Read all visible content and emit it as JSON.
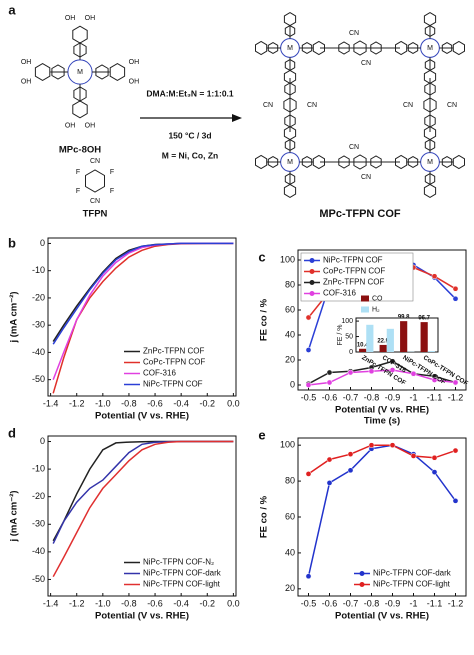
{
  "scheme": {
    "panel": "a",
    "reactant1": "MPc-8OH",
    "reactant2": "TFPN",
    "conditions": [
      "DMA:M:Et₃N = 1:1:0.1",
      "150 °C / 3d",
      "M = Ni, Co, Zn"
    ],
    "product": "MPc-TFPN COF",
    "atoms": {
      "hydroxyl": "OH",
      "nitrile": "CN",
      "fluorine": "F",
      "metal": "M"
    }
  },
  "chart_data": [
    {
      "panel": "b",
      "type": "line",
      "xlabel": "Potential (V vs. RHE)",
      "ylabel": "j (mA cm⁻²)",
      "x": [
        -1.38,
        -1.3,
        -1.2,
        -1.1,
        -1,
        -0.9,
        -0.8,
        -0.7,
        -0.6,
        -0.5,
        -0.4,
        -0.2,
        0
      ],
      "series": [
        {
          "name": "ZnPc-TFPN COF",
          "color": "#222222",
          "values": [
            -36,
            -30,
            -23,
            -16.5,
            -10.5,
            -5.5,
            -2.5,
            -1,
            -0.4,
            -0.2,
            0,
            0,
            0
          ]
        },
        {
          "name": "CoPc-TFPN COF",
          "color": "#e0302a",
          "values": [
            -55,
            -42,
            -28,
            -20,
            -14,
            -9,
            -5,
            -2.5,
            -1,
            -0.4,
            -0.1,
            0,
            0
          ]
        },
        {
          "name": "COF-316",
          "color": "#e040e0",
          "values": [
            -50,
            -40,
            -28,
            -19,
            -12,
            -7,
            -3.5,
            -1.5,
            -0.6,
            -0.2,
            0,
            0,
            0
          ]
        },
        {
          "name": "NiPc-TFPN COF",
          "color": "#2b3fd6",
          "values": [
            -37,
            -31,
            -24,
            -17,
            -11,
            -6,
            -3,
            -1,
            -0.5,
            -0.2,
            0,
            0,
            0
          ]
        }
      ],
      "xlim": [
        -1.42,
        0.02
      ],
      "ylim": [
        -56,
        2
      ],
      "xticks": [
        -1.4,
        -1.2,
        {
          "value": -1,
          "label": "-1.0"
        },
        -0.8,
        -0.6,
        -0.4,
        -0.2,
        {
          "value": 0,
          "label": "0.0"
        }
      ],
      "yticks": [
        0,
        -10,
        -20,
        -30,
        -40,
        -50
      ],
      "legend": "lower right"
    },
    {
      "panel": "c",
      "type": "line",
      "markers": true,
      "xlabel": "Potential (V vs. RHE)",
      "ylabel": "FE co / %",
      "annotation": "Time (s)",
      "x": [
        -0.5,
        -0.6,
        -0.7,
        -0.8,
        -0.9,
        -1,
        -1.1,
        -1.2
      ],
      "series": [
        {
          "name": "NiPc-TFPN COF",
          "color": "#2b3fd6",
          "values": [
            28,
            80,
            88,
            98,
            99,
            96,
            86,
            69
          ]
        },
        {
          "name": "CoPc-TFPN COF",
          "color": "#e0302a",
          "values": [
            54,
            75,
            80,
            89,
            97,
            94,
            87,
            77
          ]
        },
        {
          "name": "ZnPc-TFPN COF",
          "color": "#222222",
          "values": [
            1,
            10,
            11,
            14,
            19,
            9,
            7,
            2
          ]
        },
        {
          "name": "COF-316",
          "color": "#e040e0",
          "values": [
            0,
            2,
            10,
            11,
            12,
            9,
            4,
            2
          ]
        }
      ],
      "xlim": [
        -0.45,
        -1.25
      ],
      "ylim": [
        -4,
        108
      ],
      "xticks": [
        -0.5,
        -0.6,
        -0.7,
        -0.8,
        -0.9,
        -1,
        -1.1,
        -1.2
      ],
      "yticks": [
        0,
        20,
        40,
        60,
        80,
        100
      ],
      "legend": "upper left"
    },
    {
      "type": "bar",
      "ylabel": "FE / %",
      "categories": [
        "ZnPc-TFPN COF",
        "COF-316",
        "NiPc-TFPN COF",
        "CoPc-TFPN COF"
      ],
      "series": [
        {
          "name": "CO",
          "color": "#8b1010",
          "values": [
            10.4,
            22.9,
            99.8,
            96.7
          ],
          "show_values": true
        },
        {
          "name": "H₂",
          "color": "#aee0f5",
          "values": [
            88,
            75,
            1,
            3
          ]
        }
      ],
      "ylim": [
        0,
        110
      ],
      "yticks": [
        0,
        50,
        100
      ],
      "legend": "upper left"
    },
    {
      "panel": "d",
      "type": "line",
      "xlabel": "Potential (V vs. RHE)",
      "ylabel": "j (mA cm⁻²)",
      "x": [
        -1.38,
        -1.3,
        -1.2,
        -1.1,
        -1,
        -0.9,
        -0.8,
        -0.7,
        -0.6,
        -0.5,
        -0.4,
        -0.2,
        0
      ],
      "series": [
        {
          "name": "NiPc-TFPN COF-N₂",
          "color": "#222222",
          "values": [
            -36,
            -29,
            -19,
            -10,
            -3,
            -0.5,
            -0.2,
            -0.1,
            0,
            0,
            0,
            0,
            0
          ]
        },
        {
          "name": "NiPc-TFPN COF-dark",
          "color": "#3333aa",
          "values": [
            -37,
            -29,
            -22,
            -17,
            -14,
            -9,
            -4,
            -1,
            -0.3,
            -0.1,
            0,
            0,
            0
          ]
        },
        {
          "name": "NiPc-TFPN COF-light",
          "color": "#e03030",
          "values": [
            -49,
            -42,
            -33,
            -24,
            -17,
            -12,
            -7,
            -3,
            -1,
            -0.3,
            0,
            0,
            0
          ]
        }
      ],
      "xlim": [
        -1.42,
        0.02
      ],
      "ylim": [
        -56,
        2
      ],
      "xticks": [
        -1.4,
        -1.2,
        {
          "value": -1,
          "label": "-1.0"
        },
        -0.8,
        -0.6,
        -0.4,
        -0.2,
        {
          "value": 0,
          "label": "0.0"
        }
      ],
      "yticks": [
        0,
        -10,
        -20,
        -30,
        -40,
        -50
      ],
      "legend": "lower right"
    },
    {
      "panel": "e",
      "type": "line",
      "markers": true,
      "xlabel": "Potential (V vs. RHE)",
      "ylabel": "FE co / %",
      "x": [
        -0.5,
        -0.6,
        -0.7,
        -0.8,
        -0.9,
        -1,
        -1.1,
        -1.2
      ],
      "series": [
        {
          "name": "NiPc-TFPN COF-dark",
          "color": "#2233cc",
          "values": [
            27,
            79,
            86,
            98,
            100,
            95,
            85,
            69
          ]
        },
        {
          "name": "NiPc-TFPN COF-light",
          "color": "#e02020",
          "values": [
            84,
            92,
            95,
            100,
            100,
            94,
            93,
            97
          ]
        }
      ],
      "xlim": [
        -0.45,
        -1.25
      ],
      "ylim": [
        16,
        104
      ],
      "xticks": [
        -0.5,
        -0.6,
        -0.7,
        -0.8,
        -0.9,
        -1,
        -1.1,
        -1.2
      ],
      "yticks": [
        20,
        40,
        60,
        80,
        100
      ],
      "legend": "lower right"
    }
  ]
}
